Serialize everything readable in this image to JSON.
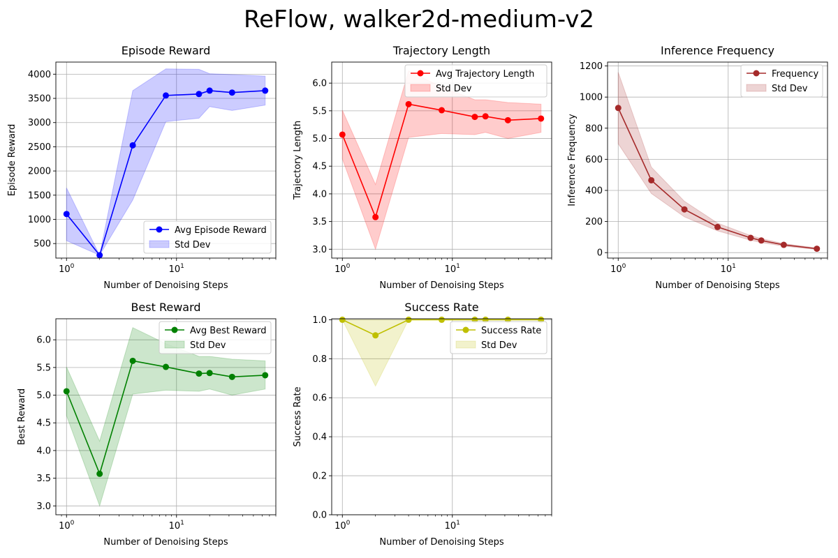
{
  "figure_title": "ReFlow, walker2d-medium-v2",
  "chart_data": [
    {
      "type": "line",
      "title": "Episode Reward",
      "xlabel": "Number of Denoising Steps",
      "ylabel": "Episode Reward",
      "xscale": "log",
      "xlim": [
        0.8,
        80
      ],
      "ylim": [
        200,
        4250
      ],
      "yticks": [
        500,
        1000,
        1500,
        2000,
        2500,
        3000,
        3500,
        4000
      ],
      "grid": true,
      "legend_position": "lower-right",
      "color": "#0000ff",
      "band_color": "#0000ff",
      "x": [
        1,
        2,
        4,
        8,
        16,
        20,
        32,
        64
      ],
      "series": [
        {
          "name": "Avg Episode Reward",
          "values": [
            1110,
            260,
            2530,
            3560,
            3590,
            3660,
            3620,
            3660
          ]
        }
      ],
      "band": {
        "name": "Std Dev",
        "lower": [
          560,
          260,
          1400,
          3020,
          3090,
          3330,
          3250,
          3360
        ],
        "upper": [
          1650,
          260,
          3660,
          4110,
          4100,
          4010,
          3990,
          3960
        ]
      }
    },
    {
      "type": "line",
      "title": "Trajectory Length",
      "xlabel": "Number of Denoising Steps",
      "ylabel": "Trajectory Length",
      "xscale": "log",
      "xlim": [
        0.8,
        80
      ],
      "ylim": [
        2.84,
        6.38
      ],
      "yticks": [
        3.0,
        3.5,
        4.0,
        4.5,
        5.0,
        5.5,
        6.0
      ],
      "grid": true,
      "legend_position": "top-right",
      "color": "#ff0000",
      "band_color": "#ff0000",
      "x": [
        1,
        2,
        4,
        8,
        16,
        20,
        32,
        64
      ],
      "series": [
        {
          "name": "Avg Trajectory Length",
          "values": [
            5.07,
            3.58,
            5.62,
            5.51,
            5.39,
            5.4,
            5.33,
            5.36
          ]
        }
      ],
      "band": {
        "name": "Std Dev",
        "lower": [
          4.63,
          3.0,
          5.02,
          5.09,
          5.07,
          5.11,
          5.0,
          5.11
        ],
        "upper": [
          5.51,
          4.17,
          6.22,
          5.93,
          5.7,
          5.7,
          5.65,
          5.62
        ]
      }
    },
    {
      "type": "line",
      "title": "Inference Frequency",
      "xlabel": "Number of Denoising Steps",
      "ylabel": "Inference Frequency",
      "xscale": "log",
      "xlim": [
        0.8,
        80
      ],
      "ylim": [
        -35,
        1225
      ],
      "yticks": [
        0,
        200,
        400,
        600,
        800,
        1000,
        1200
      ],
      "grid": true,
      "legend_position": "top-right",
      "color": "#a52a2a",
      "band_color": "#a52a2a",
      "x": [
        1,
        2,
        4,
        8,
        16,
        20,
        32,
        64
      ],
      "series": [
        {
          "name": "Frequency",
          "values": [
            930,
            465,
            278,
            165,
            95,
            78,
            50,
            25
          ]
        }
      ],
      "band": {
        "name": "Std Dev",
        "lower": [
          700,
          380,
          230,
          140,
          80,
          65,
          42,
          20
        ],
        "upper": [
          1160,
          550,
          330,
          190,
          110,
          90,
          58,
          30
        ]
      }
    },
    {
      "type": "line",
      "title": "Best Reward",
      "xlabel": "Number of Denoising Steps",
      "ylabel": "Best Reward",
      "xscale": "log",
      "xlim": [
        0.8,
        80
      ],
      "ylim": [
        2.84,
        6.38
      ],
      "yticks": [
        3.0,
        3.5,
        4.0,
        4.5,
        5.0,
        5.5,
        6.0
      ],
      "grid": true,
      "legend_position": "top-right",
      "color": "#008000",
      "band_color": "#008000",
      "x": [
        1,
        2,
        4,
        8,
        16,
        20,
        32,
        64
      ],
      "series": [
        {
          "name": "Avg Best Reward",
          "values": [
            5.07,
            3.58,
            5.62,
            5.51,
            5.39,
            5.4,
            5.33,
            5.36
          ]
        }
      ],
      "band": {
        "name": "Std Dev",
        "lower": [
          4.63,
          3.0,
          5.02,
          5.09,
          5.07,
          5.11,
          5.0,
          5.11
        ],
        "upper": [
          5.51,
          4.17,
          6.22,
          5.93,
          5.7,
          5.7,
          5.65,
          5.62
        ]
      }
    },
    {
      "type": "line",
      "title": "Success Rate",
      "xlabel": "Number of Denoising Steps",
      "ylabel": "Success Rate",
      "xscale": "log",
      "xlim": [
        0.8,
        80
      ],
      "ylim": [
        0,
        1.005
      ],
      "yticks": [
        0.0,
        0.2,
        0.4,
        0.6,
        0.8,
        1.0
      ],
      "grid": true,
      "legend_position": "top-right",
      "color": "#bfbf00",
      "band_color": "#bfbf00",
      "x": [
        1,
        2,
        4,
        8,
        16,
        20,
        32,
        64
      ],
      "series": [
        {
          "name": "Success Rate",
          "values": [
            1.0,
            0.92,
            1.0,
            1.0,
            1.0,
            1.0,
            1.0,
            1.0
          ]
        }
      ],
      "band": {
        "name": "Std Dev",
        "lower": [
          1.0,
          0.66,
          1.0,
          1.0,
          1.0,
          1.0,
          1.0,
          1.0
        ],
        "upper": [
          1.0,
          1.0,
          1.0,
          1.0,
          1.0,
          1.0,
          1.0,
          1.0
        ]
      }
    }
  ]
}
